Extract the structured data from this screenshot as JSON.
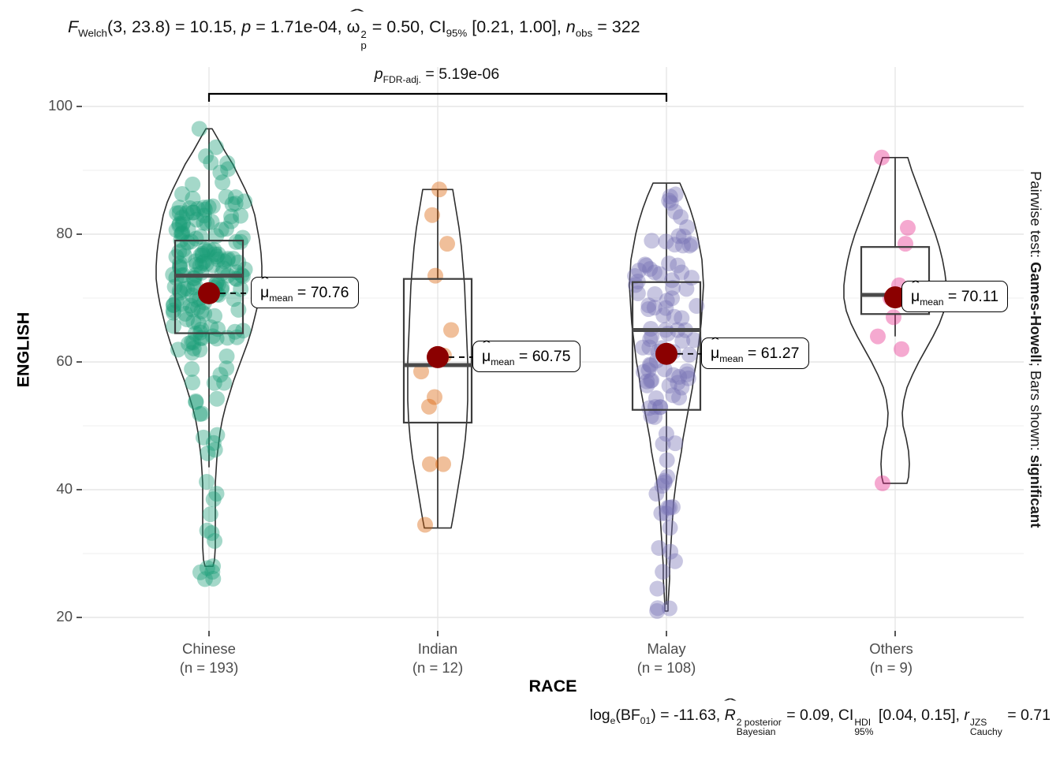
{
  "header": {
    "f": "F",
    "f_sub": "Welch",
    "seg1": "(3, 23.8) = 10.15, ",
    "p": "p",
    "seg2": " = 1.71e-04, ",
    "hat": "ˆ",
    "omega": "ω",
    "omega_sup": "2",
    "omega_sub": "p",
    "seg3": " = 0.50, CI",
    "ci_sub": "95%",
    "seg4": " [0.21, 1.00], ",
    "n": "n",
    "n_sub": "obs",
    "seg5": " = 322"
  },
  "bracket": {
    "p": "p",
    "sub": "FDR-adj.",
    "eq": " = 5.19e-06"
  },
  "right_label": {
    "part1": "Pairwise test: ",
    "part2": "Games-Howell",
    "part3": "; Bars shown: ",
    "part4": "significant"
  },
  "caption": {
    "s1": "log",
    "s1_sub": "e",
    "s2": "(BF",
    "s2_sub": "01",
    "s3": ") = -11.63, ",
    "hat": "ˆ",
    "r2": "R",
    "r2_sup": "2 posterior",
    "r2_sub": "Bayesian",
    "s4": " = 0.09, CI",
    "ci_sup": "HDI",
    "ci_sub": "95%",
    "s5": " [0.04, 0.15], ",
    "r": "r",
    "r_sup": "JZS",
    "r_sub": "Cauchy",
    "s6": " = 0.71"
  },
  "chart_data": {
    "type": "violin",
    "title": "F Welch(3, 23.8) = 10.15, p = 1.71e-04, omega2p = 0.50, CI95% [0.21, 1.00], n obs = 322",
    "caption_text": "log e(BF01) = -11.63, R2 Bayesian posterior = 0.09, CI95% HDI [0.04, 0.15], r Cauchy JZS = 0.71",
    "pairwise_note": "Pairwise test: Games-Howell; Bars shown: significant",
    "xlabel": "RACE",
    "ylabel": "ENGLISH",
    "ylim": [
      20,
      100
    ],
    "yticks": [
      100,
      80,
      60,
      40,
      20
    ],
    "yticks_minor": [
      90,
      70,
      50,
      30
    ],
    "grid": true,
    "legend": "none",
    "mean_color": "#8B0000",
    "pairwise": {
      "from": "Chinese",
      "to": "Malay",
      "label_text": "p FDR-adj. = 5.19e-06"
    },
    "groups": [
      {
        "label": "Chinese",
        "n_label": "(n = 193)",
        "n": 193,
        "color": "#1B9E77",
        "mean": 70.76,
        "median": 73.5,
        "q1": 64.5,
        "q3": 79,
        "whisker_low": 43.5,
        "whisker_high": 96.5,
        "label_dx": 53,
        "mean_mu": "μ",
        "mean_hat": "ˆ",
        "mean_sub": "mean",
        "mean_eq": " = 70.76",
        "violin_profile": [
          [
            96.5,
            4
          ],
          [
            95,
            11
          ],
          [
            93,
            20
          ],
          [
            91,
            30
          ],
          [
            89,
            38
          ],
          [
            87,
            46
          ],
          [
            85,
            53
          ],
          [
            83,
            58
          ],
          [
            81,
            61
          ],
          [
            79,
            64
          ],
          [
            77,
            66
          ],
          [
            75,
            67
          ],
          [
            73,
            67
          ],
          [
            71,
            65
          ],
          [
            69,
            62
          ],
          [
            67,
            58
          ],
          [
            65,
            54
          ],
          [
            63,
            49
          ],
          [
            61,
            43
          ],
          [
            59,
            37
          ],
          [
            57,
            31
          ],
          [
            55,
            26
          ],
          [
            53,
            21
          ],
          [
            51,
            17
          ],
          [
            49,
            14
          ],
          [
            47,
            12
          ],
          [
            45,
            10
          ],
          [
            43,
            9
          ],
          [
            41,
            8
          ],
          [
            39,
            8
          ],
          [
            37,
            8
          ],
          [
            35,
            8
          ],
          [
            33,
            8
          ],
          [
            31,
            8
          ],
          [
            29,
            7
          ],
          [
            28,
            5
          ]
        ],
        "points_gen": {
          "seed": 11,
          "range": [
            26,
            96.5
          ],
          "clusters": [
            [
              78,
              6.5,
              125
            ],
            [
              67,
              4,
              40
            ],
            [
              53,
              5,
              15
            ],
            [
              35,
              4,
              9
            ],
            [
              27,
              1,
              4
            ]
          ]
        }
      },
      {
        "label": "Indian",
        "n_label": "(n = 12)",
        "n": 12,
        "color": "#D95F02",
        "mean": 60.75,
        "median": 59.5,
        "q1": 50.5,
        "q3": 73,
        "whisker_low": 34,
        "whisker_high": 87,
        "label_dx": 44,
        "mean_mu": "μ",
        "mean_hat": "ˆ",
        "mean_sub": "mean",
        "mean_eq": " = 60.75",
        "violin_profile": [
          [
            87,
            19
          ],
          [
            84,
            23
          ],
          [
            81,
            27
          ],
          [
            78,
            30
          ],
          [
            75,
            32
          ],
          [
            72,
            34
          ],
          [
            69,
            35
          ],
          [
            66,
            36
          ],
          [
            63,
            37
          ],
          [
            60,
            38
          ],
          [
            57,
            38
          ],
          [
            54,
            38
          ],
          [
            51,
            37
          ],
          [
            48,
            35
          ],
          [
            45,
            32
          ],
          [
            42,
            28
          ],
          [
            39,
            24
          ],
          [
            36,
            20
          ],
          [
            34,
            17
          ]
        ],
        "points": [
          [
            87,
            2
          ],
          [
            83,
            -7
          ],
          [
            78.5,
            12
          ],
          [
            73.5,
            -3
          ],
          [
            65,
            17
          ],
          [
            61,
            8
          ],
          [
            58.5,
            -21
          ],
          [
            54.5,
            -4
          ],
          [
            53,
            -11
          ],
          [
            44,
            -10
          ],
          [
            44,
            7
          ],
          [
            34.5,
            -16
          ]
        ]
      },
      {
        "label": "Malay",
        "n_label": "(n = 108)",
        "n": 108,
        "color": "#7570B3",
        "mean": 61.27,
        "median": 65,
        "q1": 52.5,
        "q3": 72.5,
        "whisker_low": 22,
        "whisker_high": 88,
        "label_dx": 44,
        "mean_mu": "μ",
        "mean_hat": "ˆ",
        "mean_sub": "mean",
        "mean_eq": " = 61.27",
        "violin_profile": [
          [
            88,
            17
          ],
          [
            86,
            24
          ],
          [
            84,
            30
          ],
          [
            82,
            35
          ],
          [
            80,
            39
          ],
          [
            78,
            42
          ],
          [
            76,
            45
          ],
          [
            74,
            46
          ],
          [
            72,
            47
          ],
          [
            70,
            46
          ],
          [
            68,
            45
          ],
          [
            66,
            44
          ],
          [
            64,
            42
          ],
          [
            62,
            40
          ],
          [
            60,
            38
          ],
          [
            58,
            35
          ],
          [
            56,
            33
          ],
          [
            54,
            30
          ],
          [
            52,
            27
          ],
          [
            50,
            24
          ],
          [
            48,
            21
          ],
          [
            46,
            19
          ],
          [
            44,
            16
          ],
          [
            42,
            13
          ],
          [
            40,
            11
          ],
          [
            38,
            9
          ],
          [
            36,
            8
          ],
          [
            34,
            7
          ],
          [
            32,
            6
          ],
          [
            30,
            5
          ],
          [
            28,
            4
          ],
          [
            26,
            4
          ],
          [
            24,
            3
          ],
          [
            22,
            2
          ],
          [
            21,
            2
          ]
        ],
        "points_gen": {
          "seed": 23,
          "range": [
            21,
            88
          ],
          "clusters": [
            [
              73,
              6,
              48
            ],
            [
              59,
              5,
              34
            ],
            [
              47,
              5,
              16
            ],
            [
              31,
              5,
              8
            ],
            [
              21.5,
              0.5,
              2
            ]
          ]
        }
      },
      {
        "label": "Others",
        "n_label": "(n = 9)",
        "n": 9,
        "color": "#E7298A",
        "mean": 70.11,
        "median": 70.5,
        "q1": 67.5,
        "q3": 78,
        "whisker_low": 64,
        "whisker_high": 92,
        "label_dx": 8,
        "mean_mu": "μ",
        "mean_hat": "ˆ",
        "mean_sub": "mean",
        "mean_eq": " = 70.11",
        "violin_profile": [
          [
            92,
            16
          ],
          [
            90,
            21
          ],
          [
            88,
            27
          ],
          [
            86,
            33
          ],
          [
            84,
            39
          ],
          [
            82,
            45
          ],
          [
            80,
            51
          ],
          [
            78,
            56
          ],
          [
            76,
            60
          ],
          [
            74,
            63
          ],
          [
            72,
            65
          ],
          [
            70,
            65
          ],
          [
            68,
            62
          ],
          [
            66,
            56
          ],
          [
            64,
            48
          ],
          [
            62,
            39
          ],
          [
            60,
            30
          ],
          [
            58,
            22
          ],
          [
            56,
            15
          ],
          [
            54,
            11
          ],
          [
            52,
            9
          ],
          [
            50,
            10
          ],
          [
            48,
            14
          ],
          [
            46,
            17
          ],
          [
            44,
            18
          ],
          [
            42,
            17
          ],
          [
            41,
            15
          ]
        ],
        "points": [
          [
            92,
            -17
          ],
          [
            81,
            16
          ],
          [
            78.5,
            13
          ],
          [
            72,
            5
          ],
          [
            70,
            -6
          ],
          [
            67,
            -2
          ],
          [
            64,
            -22
          ],
          [
            62,
            8
          ],
          [
            41,
            -16
          ]
        ]
      }
    ]
  }
}
